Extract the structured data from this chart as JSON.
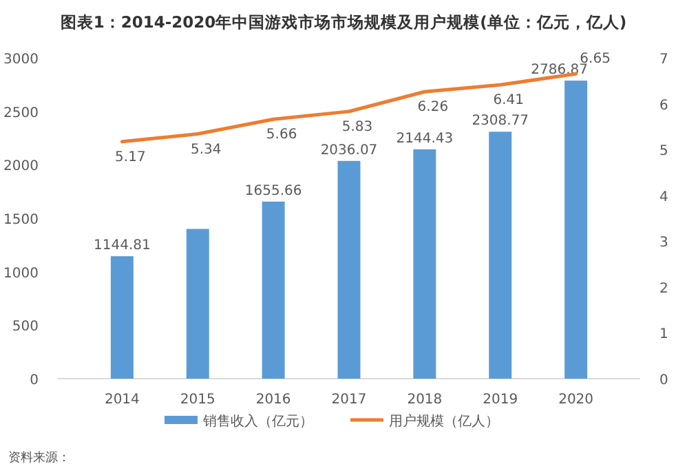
{
  "chart_data": {
    "type": "bar",
    "title": "图表1：2014-2020年中国游戏市场市场规模及用户规模(单位：亿元，亿人)",
    "categories": [
      "2014",
      "2015",
      "2016",
      "2017",
      "2018",
      "2019",
      "2020"
    ],
    "series": [
      {
        "name": "销售收入（亿元）",
        "color": "#5b9bd5",
        "values": [
          1144.81,
          1400,
          1655.66,
          2036.07,
          2144.43,
          2308.77,
          2786.87
        ],
        "value_labels": [
          "1144.81",
          null,
          "1655.66",
          "2036.07",
          "2144.43",
          "2308.77",
          "2786.87"
        ]
      },
      {
        "name": "用户规模（亿人）",
        "type": "line",
        "axis": "y2",
        "color": "#ed7d31",
        "values": [
          5.17,
          5.34,
          5.66,
          5.83,
          6.26,
          6.41,
          6.65
        ],
        "value_labels": [
          "5.17",
          "5.34",
          "5.66",
          "5.83",
          "6.26",
          "6.41",
          "6.65"
        ]
      }
    ],
    "ylim": [
      0,
      3000
    ],
    "yticks": [
      0,
      500,
      1000,
      1500,
      2000,
      2500,
      3000
    ],
    "y2lim": [
      0,
      7
    ],
    "y2ticks": [
      0,
      1,
      2,
      3,
      4,
      5,
      6,
      7
    ],
    "legend": "bottom",
    "grid": false,
    "marker": "none",
    "line_style": "solid",
    "annotations": [
      "资料来源："
    ]
  }
}
